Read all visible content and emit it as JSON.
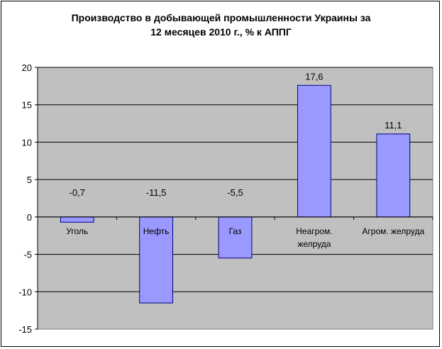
{
  "chart_data": {
    "type": "bar",
    "title_lines": [
      "Производство в добывающей промышленности Украины за",
      "12 месяцев 2010 г., % к АППГ"
    ],
    "categories": [
      [
        "Уголь"
      ],
      [
        "Нефть"
      ],
      [
        "Газ"
      ],
      [
        "Неагром.",
        "желруда"
      ],
      [
        "Агром. желруда"
      ]
    ],
    "values": [
      -0.7,
      -11.5,
      -5.5,
      17.6,
      11.1
    ],
    "data_labels": [
      "-0,7",
      "-11,5",
      "-5,5",
      "17,6",
      "11,1"
    ],
    "ylim": [
      -15,
      20
    ],
    "yticks": [
      -15,
      -10,
      -5,
      0,
      5,
      10,
      15,
      20
    ],
    "grid": true,
    "colors": {
      "bar_fill": "#9999ff",
      "bar_stroke": "#000080",
      "plot_background": "#c0c0c0",
      "gridline": "#000000"
    }
  }
}
